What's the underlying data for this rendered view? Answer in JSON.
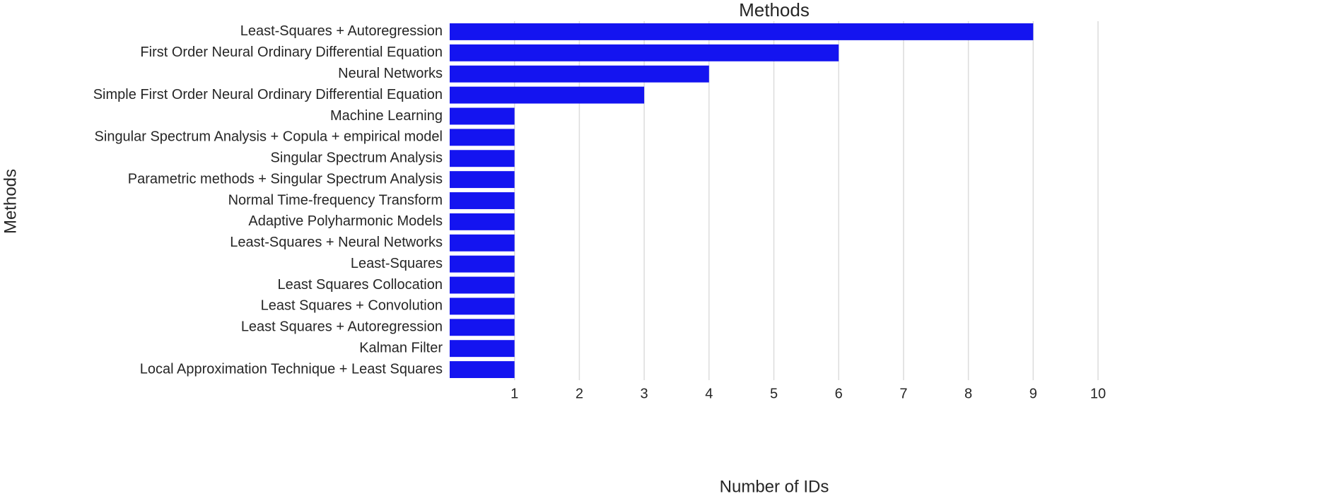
{
  "chart_data": {
    "type": "barh",
    "title": "Methods",
    "x_label": "Number of IDs",
    "y_label": "Methods",
    "categories": [
      "Least-Squares + Autoregression",
      "First Order Neural Ordinary Differential Equation",
      "Neural Networks",
      "Simple First Order Neural Ordinary Differential Equation",
      "Machine Learning",
      "Singular Spectrum Analysis + Copula + empirical model",
      "Singular Spectrum Analysis",
      "Parametric methods + Singular Spectrum Analysis",
      "Normal Time-frequency Transform",
      "Adaptive Polyharmonic Models",
      "Least-Squares + Neural Networks",
      "Least-Squares",
      "Least Squares Collocation",
      "Least Squares + Convolution",
      "Least Squares + Autoregression",
      "Kalman Filter",
      "Local Approximation Technique + Least Squares"
    ],
    "values": [
      9,
      6,
      4,
      3,
      1,
      1,
      1,
      1,
      1,
      1,
      1,
      1,
      1,
      1,
      1,
      1,
      1
    ],
    "color": "#1414f0",
    "xlim": [
      0,
      10
    ],
    "xticks": [
      1,
      2,
      3,
      4,
      5,
      6,
      7,
      8,
      9,
      10
    ],
    "grid": true
  }
}
